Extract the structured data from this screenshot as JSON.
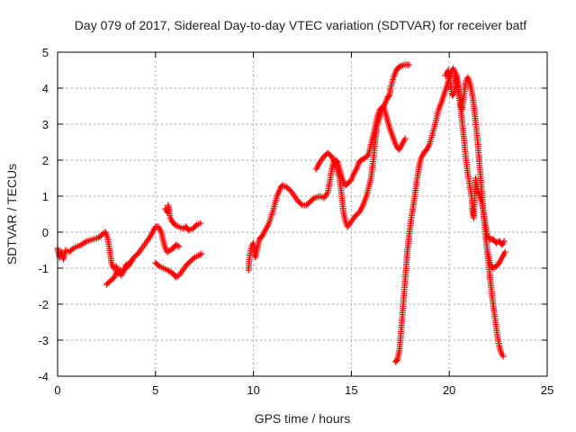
{
  "chart_data": {
    "type": "scatter",
    "title": "Day 079 of 2017, Sidereal Day-to-day VTEC variation (SDTVAR) for receiver batf",
    "xlabel": "GPS time / hours",
    "ylabel": "SDTVAR / TECUs",
    "xlim": [
      0,
      25
    ],
    "ylim": [
      -4,
      5
    ],
    "xticks": [
      "0",
      "5",
      "10",
      "15",
      "20",
      "25"
    ],
    "yticks": [
      "-4",
      "-3",
      "-2",
      "-1",
      "0",
      "1",
      "2",
      "3",
      "4",
      "5"
    ],
    "grid": true,
    "marker": "plus",
    "marker_color": "#ff0000",
    "series": [
      {
        "segments": [
          [
            [
              0.0,
              -0.45
            ],
            [
              0.1,
              -0.7
            ],
            [
              0.2,
              -0.55
            ],
            [
              0.3,
              -0.75
            ],
            [
              0.4,
              -0.5
            ],
            [
              0.6,
              -0.55
            ],
            [
              0.8,
              -0.45
            ],
            [
              1.0,
              -0.4
            ],
            [
              1.2,
              -0.35
            ],
            [
              1.5,
              -0.25
            ],
            [
              1.8,
              -0.2
            ],
            [
              2.1,
              -0.15
            ],
            [
              2.3,
              -0.05
            ],
            [
              2.45,
              0.0
            ],
            [
              2.55,
              -0.15
            ],
            [
              2.65,
              -0.45
            ],
            [
              2.75,
              -0.85
            ],
            [
              2.85,
              -1.0
            ],
            [
              3.0,
              -0.95
            ],
            [
              3.1,
              -1.15
            ],
            [
              3.2,
              -1.05
            ],
            [
              3.35,
              -1.1
            ],
            [
              3.5,
              -0.9
            ],
            [
              3.7,
              -0.85
            ],
            [
              3.9,
              -0.7
            ],
            [
              4.1,
              -0.6
            ],
            [
              4.3,
              -0.45
            ],
            [
              4.5,
              -0.3
            ],
            [
              4.7,
              -0.15
            ],
            [
              4.9,
              0.05
            ],
            [
              5.0,
              0.15
            ],
            [
              5.15,
              0.15
            ],
            [
              5.3,
              0.0
            ],
            [
              5.4,
              -0.25
            ],
            [
              5.5,
              -0.45
            ],
            [
              5.6,
              -0.55
            ],
            [
              5.75,
              -0.5
            ],
            [
              5.9,
              -0.45
            ],
            [
              6.05,
              -0.35
            ],
            [
              6.2,
              -0.4
            ]
          ],
          [
            [
              2.5,
              -1.45
            ],
            [
              2.7,
              -1.35
            ],
            [
              2.9,
              -1.25
            ],
            [
              3.05,
              -1.05
            ],
            [
              3.25,
              -1.2
            ],
            [
              3.45,
              -1.0
            ],
            [
              3.6,
              -0.95
            ],
            [
              3.8,
              -0.8
            ]
          ],
          [
            [
              5.0,
              -0.85
            ],
            [
              5.2,
              -0.95
            ],
            [
              5.4,
              -1.0
            ],
            [
              5.6,
              -1.05
            ],
            [
              5.75,
              -1.1
            ],
            [
              5.9,
              -1.15
            ],
            [
              6.05,
              -1.25
            ],
            [
              6.2,
              -1.2
            ],
            [
              6.4,
              -1.05
            ],
            [
              6.6,
              -0.9
            ],
            [
              6.8,
              -0.8
            ],
            [
              7.0,
              -0.7
            ],
            [
              7.2,
              -0.65
            ],
            [
              7.35,
              -0.6
            ]
          ],
          [
            [
              5.5,
              0.65
            ],
            [
              5.6,
              0.55
            ],
            [
              5.65,
              0.75
            ],
            [
              5.75,
              0.4
            ],
            [
              5.85,
              0.3
            ],
            [
              6.0,
              0.2
            ],
            [
              6.2,
              0.15
            ],
            [
              6.4,
              0.1
            ],
            [
              6.55,
              0.15
            ],
            [
              6.7,
              0.05
            ],
            [
              6.9,
              0.1
            ],
            [
              7.1,
              0.2
            ],
            [
              7.3,
              0.25
            ]
          ],
          [
            [
              9.75,
              -1.05
            ],
            [
              9.8,
              -0.7
            ],
            [
              9.9,
              -0.4
            ],
            [
              10.0,
              -0.3
            ],
            [
              10.05,
              -0.6
            ],
            [
              10.1,
              -0.7
            ],
            [
              10.2,
              -0.45
            ],
            [
              10.3,
              -0.2
            ],
            [
              10.45,
              -0.1
            ],
            [
              10.6,
              0.05
            ],
            [
              10.8,
              0.25
            ],
            [
              11.0,
              0.6
            ],
            [
              11.2,
              1.0
            ],
            [
              11.4,
              1.25
            ],
            [
              11.5,
              1.3
            ],
            [
              11.7,
              1.25
            ],
            [
              11.9,
              1.15
            ],
            [
              12.1,
              1.0
            ],
            [
              12.3,
              0.85
            ],
            [
              12.5,
              0.75
            ],
            [
              12.7,
              0.75
            ],
            [
              12.9,
              0.85
            ],
            [
              13.1,
              0.95
            ],
            [
              13.4,
              1.0
            ],
            [
              13.6,
              0.95
            ],
            [
              13.8,
              1.1
            ],
            [
              13.9,
              1.4
            ],
            [
              14.0,
              1.75
            ],
            [
              14.1,
              1.95
            ],
            [
              14.2,
              2.0
            ],
            [
              14.3,
              1.95
            ],
            [
              14.4,
              1.75
            ],
            [
              14.5,
              1.55
            ],
            [
              14.6,
              1.4
            ],
            [
              14.7,
              1.3
            ],
            [
              14.8,
              1.35
            ],
            [
              15.0,
              1.45
            ],
            [
              15.1,
              1.6
            ],
            [
              15.3,
              1.8
            ],
            [
              15.4,
              1.95
            ],
            [
              15.5,
              2.0
            ],
            [
              15.65,
              2.05
            ],
            [
              15.8,
              2.1
            ],
            [
              15.9,
              2.2
            ],
            [
              16.05,
              2.55
            ],
            [
              16.15,
              2.75
            ],
            [
              16.25,
              3.0
            ],
            [
              16.35,
              3.25
            ],
            [
              16.45,
              3.4
            ],
            [
              16.55,
              3.45
            ],
            [
              16.65,
              3.5
            ],
            [
              16.75,
              3.3
            ],
            [
              16.85,
              3.1
            ],
            [
              16.95,
              2.9
            ],
            [
              17.05,
              2.75
            ],
            [
              17.15,
              2.6
            ],
            [
              17.25,
              2.45
            ],
            [
              17.35,
              2.35
            ],
            [
              17.45,
              2.3
            ],
            [
              17.55,
              2.4
            ],
            [
              17.65,
              2.5
            ],
            [
              17.75,
              2.6
            ]
          ],
          [
            [
              13.2,
              1.75
            ],
            [
              13.4,
              1.95
            ],
            [
              13.6,
              2.1
            ],
            [
              13.8,
              2.2
            ],
            [
              14.0,
              2.1
            ],
            [
              14.2,
              1.85
            ],
            [
              14.4,
              1.5
            ],
            [
              14.5,
              1.05
            ],
            [
              14.6,
              0.55
            ],
            [
              14.7,
              0.3
            ],
            [
              14.8,
              0.15
            ],
            [
              15.0,
              0.3
            ],
            [
              15.2,
              0.45
            ],
            [
              15.4,
              0.55
            ],
            [
              15.6,
              0.75
            ],
            [
              15.8,
              1.05
            ],
            [
              16.0,
              1.5
            ],
            [
              16.1,
              1.9
            ],
            [
              16.2,
              2.45
            ],
            [
              16.3,
              2.95
            ],
            [
              16.45,
              3.2
            ],
            [
              16.6,
              3.45
            ],
            [
              16.75,
              3.6
            ],
            [
              16.85,
              3.75
            ],
            [
              16.95,
              3.8
            ],
            [
              17.0,
              4.0
            ],
            [
              17.15,
              4.3
            ],
            [
              17.3,
              4.5
            ],
            [
              17.45,
              4.6
            ],
            [
              17.7,
              4.65
            ],
            [
              17.95,
              4.65
            ]
          ],
          [
            [
              17.25,
              -3.6
            ],
            [
              17.35,
              -3.55
            ],
            [
              17.45,
              -3.3
            ],
            [
              17.55,
              -2.7
            ],
            [
              17.65,
              -2.0
            ],
            [
              17.75,
              -1.3
            ],
            [
              17.85,
              -0.6
            ],
            [
              17.95,
              -0.1
            ],
            [
              18.05,
              0.35
            ],
            [
              18.15,
              0.7
            ],
            [
              18.25,
              1.05
            ],
            [
              18.35,
              1.45
            ],
            [
              18.45,
              1.8
            ],
            [
              18.55,
              2.05
            ],
            [
              18.7,
              2.2
            ],
            [
              18.85,
              2.3
            ],
            [
              19.0,
              2.45
            ],
            [
              19.15,
              2.75
            ],
            [
              19.3,
              3.05
            ],
            [
              19.45,
              3.4
            ],
            [
              19.6,
              3.6
            ],
            [
              19.75,
              3.85
            ],
            [
              19.9,
              4.1
            ],
            [
              20.0,
              4.3
            ],
            [
              20.1,
              4.45
            ],
            [
              20.2,
              4.55
            ],
            [
              20.25,
              4.5
            ],
            [
              20.35,
              4.3
            ],
            [
              20.45,
              3.95
            ],
            [
              20.55,
              3.6
            ],
            [
              20.65,
              3.4
            ],
            [
              20.75,
              3.8
            ],
            [
              20.85,
              4.2
            ],
            [
              20.95,
              4.3
            ],
            [
              21.05,
              4.15
            ],
            [
              21.15,
              3.9
            ],
            [
              21.25,
              3.55
            ],
            [
              21.35,
              3.05
            ],
            [
              21.45,
              2.5
            ],
            [
              21.55,
              1.85
            ],
            [
              21.65,
              1.2
            ],
            [
              21.75,
              0.5
            ],
            [
              21.85,
              -0.05
            ],
            [
              21.95,
              -0.55
            ],
            [
              22.05,
              -1.1
            ],
            [
              22.15,
              -1.6
            ],
            [
              22.25,
              -2.05
            ],
            [
              22.35,
              -2.45
            ],
            [
              22.45,
              -2.85
            ],
            [
              22.55,
              -3.15
            ],
            [
              22.65,
              -3.35
            ],
            [
              22.75,
              -3.45
            ]
          ],
          [
            [
              19.8,
              4.35
            ],
            [
              19.95,
              4.5
            ],
            [
              20.05,
              4.2
            ],
            [
              20.15,
              3.8
            ],
            [
              20.25,
              3.85
            ],
            [
              20.35,
              4.4
            ],
            [
              20.45,
              4.15
            ],
            [
              20.6,
              3.35
            ],
            [
              20.75,
              2.6
            ],
            [
              20.85,
              2.05
            ],
            [
              20.95,
              1.6
            ],
            [
              21.05,
              1.3
            ],
            [
              21.15,
              0.95
            ],
            [
              21.2,
              0.5
            ],
            [
              21.25,
              0.4
            ],
            [
              21.35,
              1.5
            ],
            [
              21.45,
              1.15
            ],
            [
              21.55,
              1.0
            ],
            [
              21.65,
              0.85
            ],
            [
              21.75,
              0.55
            ],
            [
              21.85,
              0.2
            ],
            [
              21.95,
              -0.1
            ],
            [
              22.1,
              -0.2
            ],
            [
              22.25,
              -0.2
            ],
            [
              22.4,
              -0.3
            ],
            [
              22.55,
              -0.25
            ],
            [
              22.7,
              -0.35
            ],
            [
              22.8,
              -0.25
            ]
          ],
          [
            [
              21.95,
              -0.55
            ],
            [
              22.1,
              -0.9
            ],
            [
              22.25,
              -1.0
            ],
            [
              22.4,
              -0.95
            ],
            [
              22.55,
              -0.85
            ],
            [
              22.7,
              -0.7
            ],
            [
              22.85,
              -0.55
            ]
          ]
        ]
      }
    ]
  }
}
